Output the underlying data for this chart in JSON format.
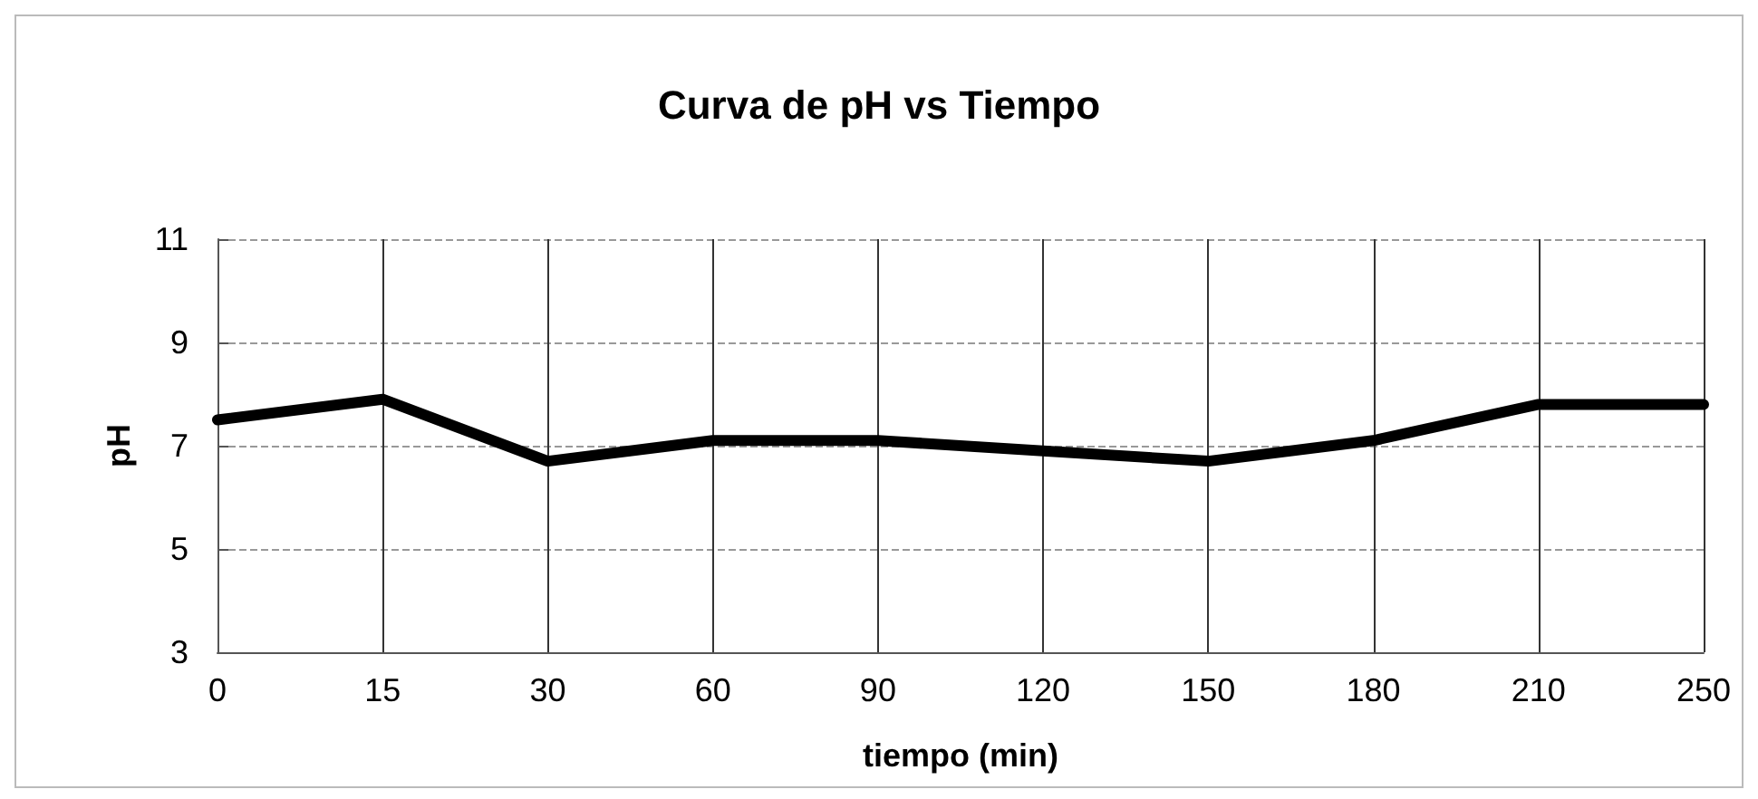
{
  "chart_data": {
    "type": "line",
    "title": "Curva de pH vs Tiempo",
    "xlabel": "tiempo (min)",
    "ylabel": "pH",
    "categories": [
      "0",
      "15",
      "30",
      "60",
      "90",
      "120",
      "150",
      "180",
      "210",
      "250"
    ],
    "series": [
      {
        "color": "#000000",
        "values": [
          7.5,
          7.9,
          6.7,
          7.1,
          7.1,
          6.9,
          6.7,
          7.1,
          7.8,
          7.8
        ]
      }
    ],
    "ylim": [
      3,
      11
    ],
    "yticks": [
      3,
      5,
      7,
      9,
      11
    ],
    "grid": true,
    "line_style": "solid"
  }
}
